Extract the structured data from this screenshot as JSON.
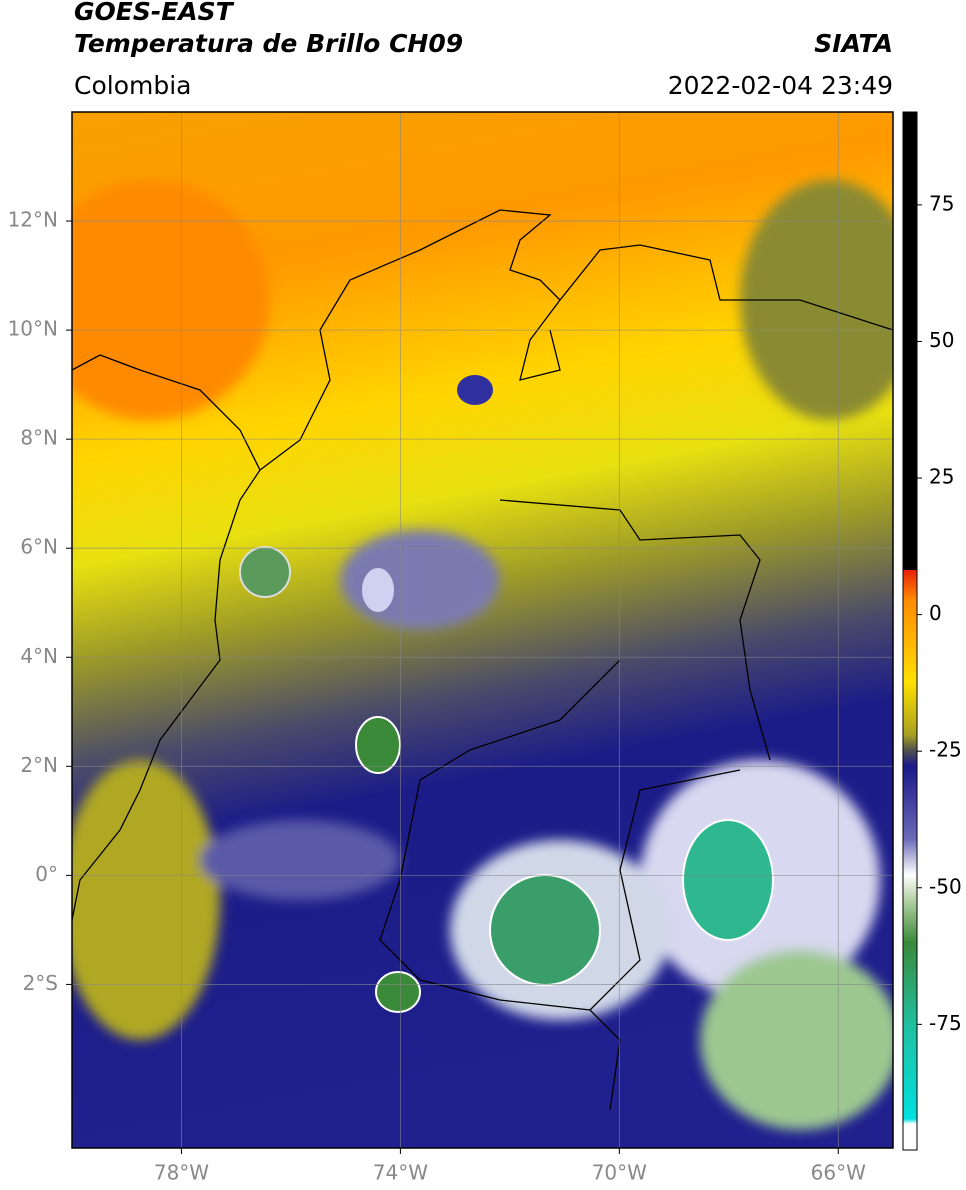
{
  "header": {
    "title": "GOES-EAST",
    "subtitle": "Temperatura de Brillo CH09",
    "source": "SIATA",
    "region": "Colombia",
    "datetime": "2022-02-04 23:49"
  },
  "map": {
    "xlim": [
      -80,
      -65
    ],
    "ylim": [
      -5,
      14
    ],
    "xticks": [
      {
        "value": -78,
        "label": "78°W"
      },
      {
        "value": -74,
        "label": "74°W"
      },
      {
        "value": -70,
        "label": "70°W"
      },
      {
        "value": -66,
        "label": "66°W"
      }
    ],
    "yticks": [
      {
        "value": -2,
        "label": "2°S"
      },
      {
        "value": 0,
        "label": "0°"
      },
      {
        "value": 2,
        "label": "2°N"
      },
      {
        "value": 4,
        "label": "4°N"
      },
      {
        "value": 6,
        "label": "6°N"
      },
      {
        "value": 8,
        "label": "8°N"
      },
      {
        "value": 10,
        "label": "10°N"
      },
      {
        "value": 12,
        "label": "12°N"
      }
    ],
    "grid": true
  },
  "colorbar": {
    "lim": [
      -98,
      92
    ],
    "ticks": [
      75,
      50,
      25,
      0,
      -25,
      -50,
      -75
    ]
  }
}
